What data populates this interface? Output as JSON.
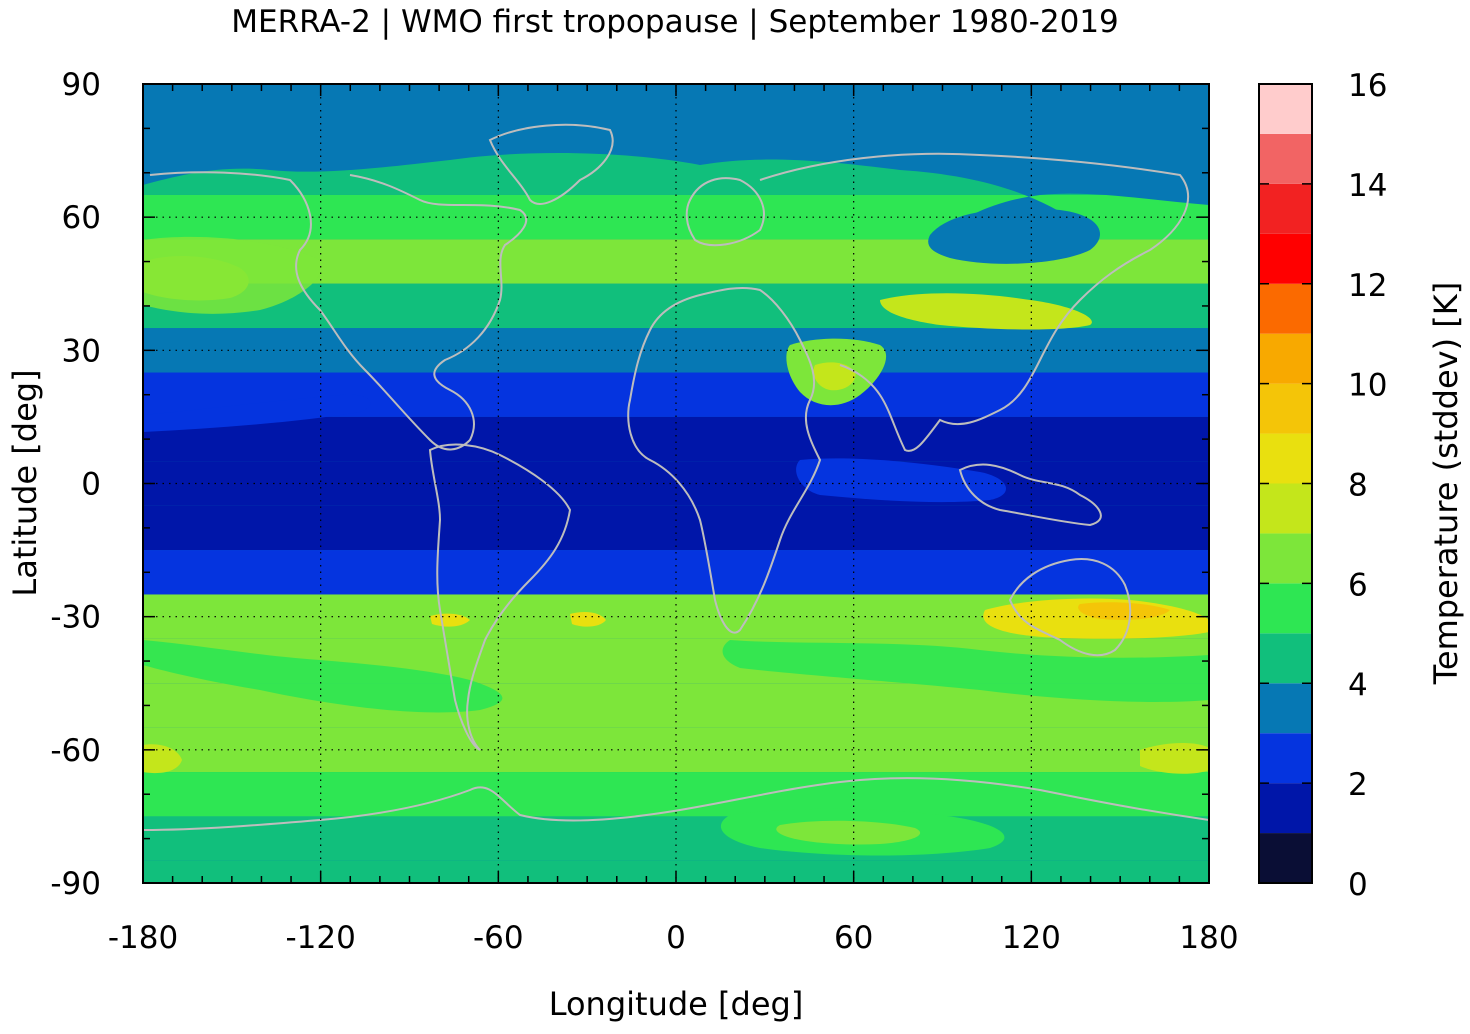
{
  "chart_data": {
    "type": "heatmap",
    "title": "MERRA-2 | WMO first tropopause | September 1980-2019",
    "xlabel": "Longitude [deg]",
    "ylabel": "Latitude [deg]",
    "xlim": [
      -180,
      180
    ],
    "ylim": [
      -90,
      90
    ],
    "x_ticks": [
      "-180",
      "-120",
      "-60",
      "0",
      "60",
      "120",
      "180"
    ],
    "y_ticks": [
      "90",
      "60",
      "30",
      "0",
      "-30",
      "-60",
      "-90"
    ],
    "grid": "dotted",
    "coastlines": "gray",
    "colorbar": {
      "label": "Temperature (stddev) [K]",
      "range": [
        0,
        16
      ],
      "step": 1,
      "tick_labels": [
        "0",
        "2",
        "4",
        "6",
        "8",
        "10",
        "12",
        "14",
        "16"
      ],
      "colors": [
        "#0a0e35",
        "#0016a9",
        "#0534df",
        "#0678b4",
        "#11bf7c",
        "#2ee653",
        "#7de63a",
        "#c4e61b",
        "#e9e00f",
        "#f4c508",
        "#f8a900",
        "#fb6a00",
        "#ff0000",
        "#f22222",
        "#f26464",
        "#ffcccc"
      ]
    },
    "values_by_latitude": {
      "latitudes": [
        90,
        80,
        70,
        60,
        50,
        40,
        30,
        20,
        10,
        0,
        -10,
        -20,
        -30,
        -40,
        -50,
        -60,
        -70,
        -80,
        -90
      ],
      "zonal_mean_stddev_K": [
        3.5,
        3.5,
        4.5,
        5.5,
        6.2,
        4.5,
        3.0,
        2.0,
        1.5,
        1.5,
        1.5,
        2.5,
        6.5,
        6.3,
        6.3,
        6.5,
        5.5,
        4.5,
        4.5
      ]
    }
  }
}
